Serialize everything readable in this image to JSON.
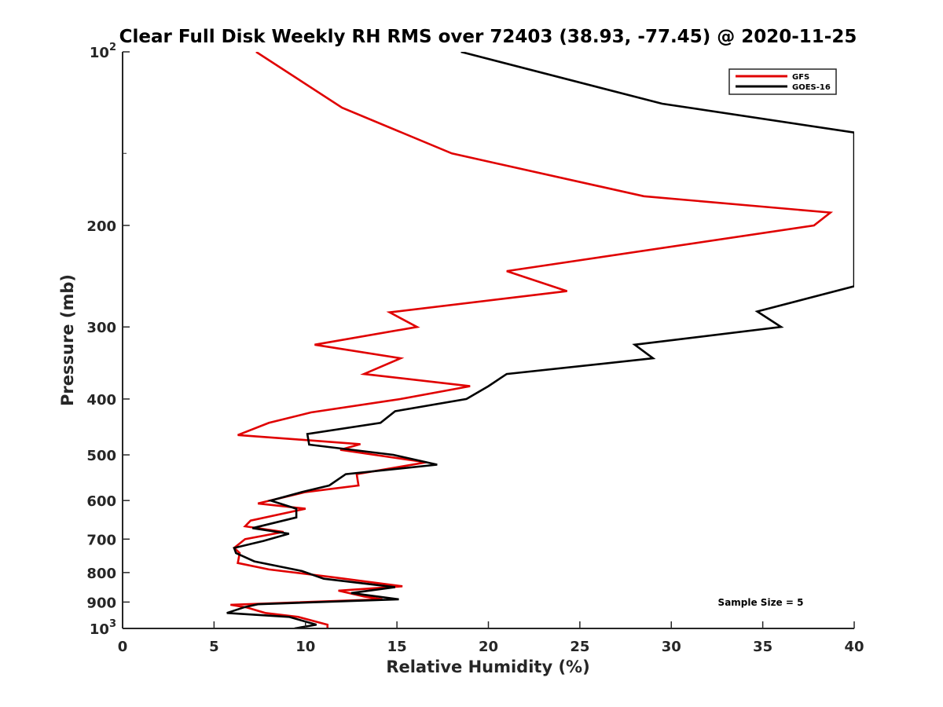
{
  "chart_data": {
    "type": "line",
    "title": "Clear Full Disk Weekly RH RMS over 72403 (38.93, -77.45) @ 2020-11-25",
    "xlabel": "Relative Humidity (%)",
    "ylabel": "Pressure (mb)",
    "xlim": [
      0,
      40
    ],
    "ylim": [
      100,
      1000
    ],
    "yscale": "log",
    "y_reversed": true,
    "grid": false,
    "legend_position": "top-right",
    "x_ticks": [
      "0",
      "5",
      "10",
      "15",
      "20",
      "25",
      "30",
      "35",
      "40"
    ],
    "y_ticks": [
      {
        "value": 100,
        "base": "10",
        "exp": "2"
      },
      {
        "value": 200,
        "label": "200"
      },
      {
        "value": 300,
        "label": "300"
      },
      {
        "value": 400,
        "label": "400"
      },
      {
        "value": 500,
        "label": "500"
      },
      {
        "value": 600,
        "label": "600"
      },
      {
        "value": 700,
        "label": "700"
      },
      {
        "value": 800,
        "label": "800"
      },
      {
        "value": 900,
        "label": "900"
      },
      {
        "value": 1000,
        "base": "10",
        "exp": "3"
      }
    ],
    "annotation": "Sample Size = 5",
    "series": [
      {
        "name": "GFS",
        "color": "#e00000",
        "points": [
          [
            7.3,
            100
          ],
          [
            12,
            125
          ],
          [
            18,
            150
          ],
          [
            28.5,
            178
          ],
          [
            38.7,
            190
          ],
          [
            37.8,
            200
          ],
          [
            21,
            240
          ],
          [
            24.3,
            260
          ],
          [
            14.6,
            283
          ],
          [
            16.1,
            300
          ],
          [
            10.5,
            322
          ],
          [
            15.2,
            340
          ],
          [
            13.2,
            362
          ],
          [
            19,
            380
          ],
          [
            15.2,
            400
          ],
          [
            10.3,
            422
          ],
          [
            8,
            440
          ],
          [
            6.3,
            462
          ],
          [
            9.5,
            470
          ],
          [
            13,
            479
          ],
          [
            11.9,
            490
          ],
          [
            16.6,
            515
          ],
          [
            12.8,
            540
          ],
          [
            12.9,
            565
          ],
          [
            10,
            580
          ],
          [
            7.4,
            607
          ],
          [
            10,
            620
          ],
          [
            7,
            650
          ],
          [
            6.7,
            665
          ],
          [
            8.8,
            680
          ],
          [
            6.7,
            700
          ],
          [
            6.1,
            725
          ],
          [
            6.4,
            740
          ],
          [
            6.3,
            770
          ],
          [
            8,
            790
          ],
          [
            11.5,
            815
          ],
          [
            15.3,
            845
          ],
          [
            11.8,
            860
          ],
          [
            13.2,
            880
          ],
          [
            14.2,
            890
          ],
          [
            5.9,
            910
          ],
          [
            6.8,
            920
          ],
          [
            7.8,
            940
          ],
          [
            9.6,
            955
          ],
          [
            11.2,
            985
          ],
          [
            11.2,
            1000
          ]
        ]
      },
      {
        "name": "GOES-16",
        "color": "#000000",
        "points": [
          [
            18.5,
            100
          ],
          [
            29.5,
            123
          ],
          [
            40,
            138
          ],
          [
            40,
            255
          ],
          [
            34.7,
            282
          ],
          [
            36,
            300
          ],
          [
            28,
            322
          ],
          [
            29,
            340
          ],
          [
            21,
            362
          ],
          [
            20,
            380
          ],
          [
            18.8,
            400
          ],
          [
            14.9,
            420
          ],
          [
            14.1,
            440
          ],
          [
            10.1,
            460
          ],
          [
            10.2,
            480
          ],
          [
            14.8,
            500
          ],
          [
            17.2,
            520
          ],
          [
            12.2,
            540
          ],
          [
            11.3,
            565
          ],
          [
            9.8,
            580
          ],
          [
            8.1,
            600
          ],
          [
            9.5,
            620
          ],
          [
            9.5,
            642
          ],
          [
            7.1,
            670
          ],
          [
            9.1,
            685
          ],
          [
            7.7,
            705
          ],
          [
            6.1,
            725
          ],
          [
            6.2,
            740
          ],
          [
            7.2,
            765
          ],
          [
            9.8,
            795
          ],
          [
            11,
            820
          ],
          [
            14.9,
            848
          ],
          [
            12.5,
            868
          ],
          [
            15.1,
            890
          ],
          [
            7.4,
            908
          ],
          [
            6.7,
            918
          ],
          [
            5.7,
            940
          ],
          [
            9.1,
            955
          ],
          [
            10.6,
            985
          ],
          [
            9.4,
            1000
          ]
        ]
      }
    ]
  }
}
